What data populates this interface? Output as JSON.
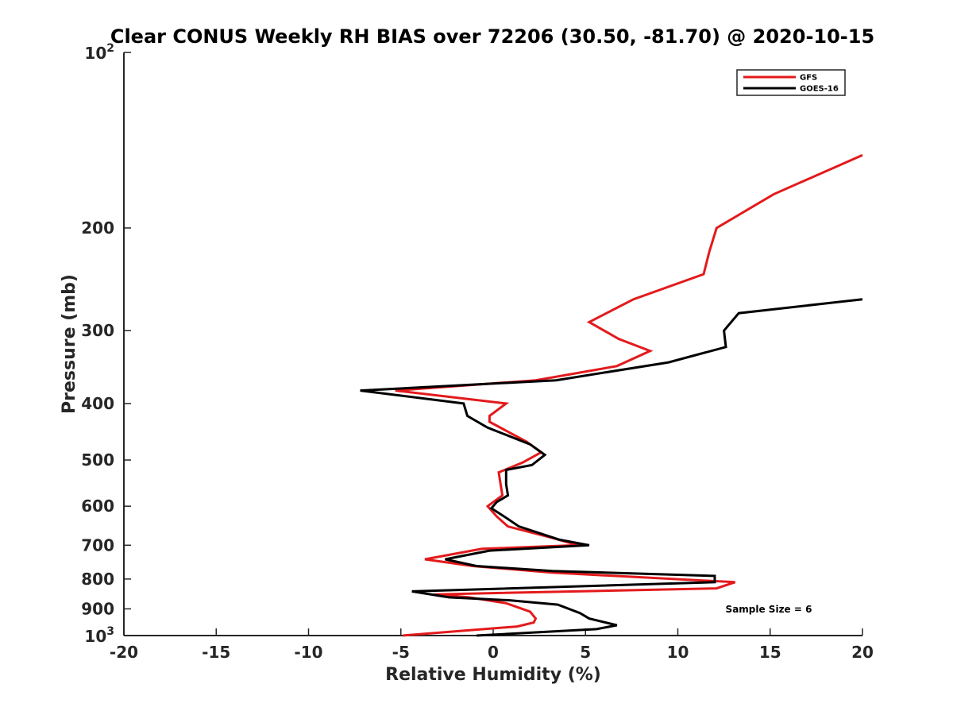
{
  "chart_data": {
    "type": "line",
    "title": "Clear CONUS Weekly RH BIAS over 72206 (30.50, -81.70) @ 2020-10-15",
    "xlabel": "Relative Humidity (%)",
    "ylabel": "Pressure (mb)",
    "xlim": [
      -20,
      20
    ],
    "ylim": [
      100,
      1000
    ],
    "y_scale": "log",
    "y_reversed": true,
    "grid": false,
    "legend_position": "top-right",
    "x_ticks": [
      -20,
      -15,
      -10,
      -5,
      0,
      5,
      10,
      15,
      20
    ],
    "x_tick_labels": [
      "-20",
      "-15",
      "-10",
      "-5",
      "0",
      "5",
      "10",
      "15",
      "20"
    ],
    "y_ticks": [
      200,
      300,
      400,
      500,
      600,
      700,
      800,
      900
    ],
    "y_tick_labels": [
      "200",
      "300",
      "400",
      "500",
      "600",
      "700",
      "800",
      "900"
    ],
    "y_limit_labels": [
      {
        "base": "10",
        "exp": "2"
      },
      {
        "base": "10",
        "exp": "3"
      }
    ],
    "annotation": "Sample Size = 6",
    "series": [
      {
        "name": "GFS",
        "color": "#e31a1c",
        "points": [
          [
            20.0,
            150
          ],
          [
            15.2,
            175
          ],
          [
            12.1,
            200
          ],
          [
            11.7,
            220
          ],
          [
            11.4,
            240
          ],
          [
            7.6,
            265
          ],
          [
            5.2,
            290
          ],
          [
            6.8,
            310
          ],
          [
            8.5,
            325
          ],
          [
            6.7,
            345
          ],
          [
            2.3,
            365
          ],
          [
            -5.3,
            380
          ],
          [
            0.7,
            400
          ],
          [
            -0.2,
            420
          ],
          [
            -0.2,
            430
          ],
          [
            1.8,
            465
          ],
          [
            2.6,
            485
          ],
          [
            1.6,
            505
          ],
          [
            0.3,
            525
          ],
          [
            0.4,
            550
          ],
          [
            0.5,
            575
          ],
          [
            -0.3,
            600
          ],
          [
            0.2,
            625
          ],
          [
            0.8,
            650
          ],
          [
            3.2,
            680
          ],
          [
            4.6,
            700
          ],
          [
            -0.6,
            710
          ],
          [
            -3.7,
            740
          ],
          [
            -1.1,
            760
          ],
          [
            3.2,
            780
          ],
          [
            13.1,
            810
          ],
          [
            12.1,
            830
          ],
          [
            -3.2,
            850
          ],
          [
            -1.3,
            860
          ],
          [
            0.7,
            880
          ],
          [
            2.0,
            910
          ],
          [
            2.3,
            935
          ],
          [
            2.2,
            950
          ],
          [
            1.3,
            965
          ],
          [
            -4.9,
            1000
          ]
        ]
      },
      {
        "name": "GOES-16",
        "color": "#000000",
        "points": [
          [
            20.0,
            265
          ],
          [
            13.3,
            280
          ],
          [
            12.5,
            300
          ],
          [
            12.6,
            320
          ],
          [
            9.5,
            340
          ],
          [
            3.4,
            365
          ],
          [
            -7.2,
            380
          ],
          [
            -1.6,
            400
          ],
          [
            -1.4,
            420
          ],
          [
            -0.3,
            440
          ],
          [
            2.0,
            470
          ],
          [
            2.8,
            490
          ],
          [
            2.1,
            510
          ],
          [
            0.7,
            520
          ],
          [
            0.7,
            550
          ],
          [
            0.8,
            575
          ],
          [
            0.2,
            590
          ],
          [
            -0.1,
            605
          ],
          [
            0.6,
            625
          ],
          [
            1.4,
            650
          ],
          [
            3.6,
            685
          ],
          [
            5.2,
            700
          ],
          [
            -0.2,
            715
          ],
          [
            -2.6,
            740
          ],
          [
            -0.9,
            760
          ],
          [
            3.2,
            775
          ],
          [
            12.0,
            790
          ],
          [
            12.0,
            810
          ],
          [
            -4.4,
            840
          ],
          [
            -2.4,
            860
          ],
          [
            0.9,
            870
          ],
          [
            3.5,
            885
          ],
          [
            4.7,
            915
          ],
          [
            5.2,
            935
          ],
          [
            6.7,
            960
          ],
          [
            5.6,
            975
          ],
          [
            -0.9,
            1000
          ]
        ]
      }
    ]
  }
}
